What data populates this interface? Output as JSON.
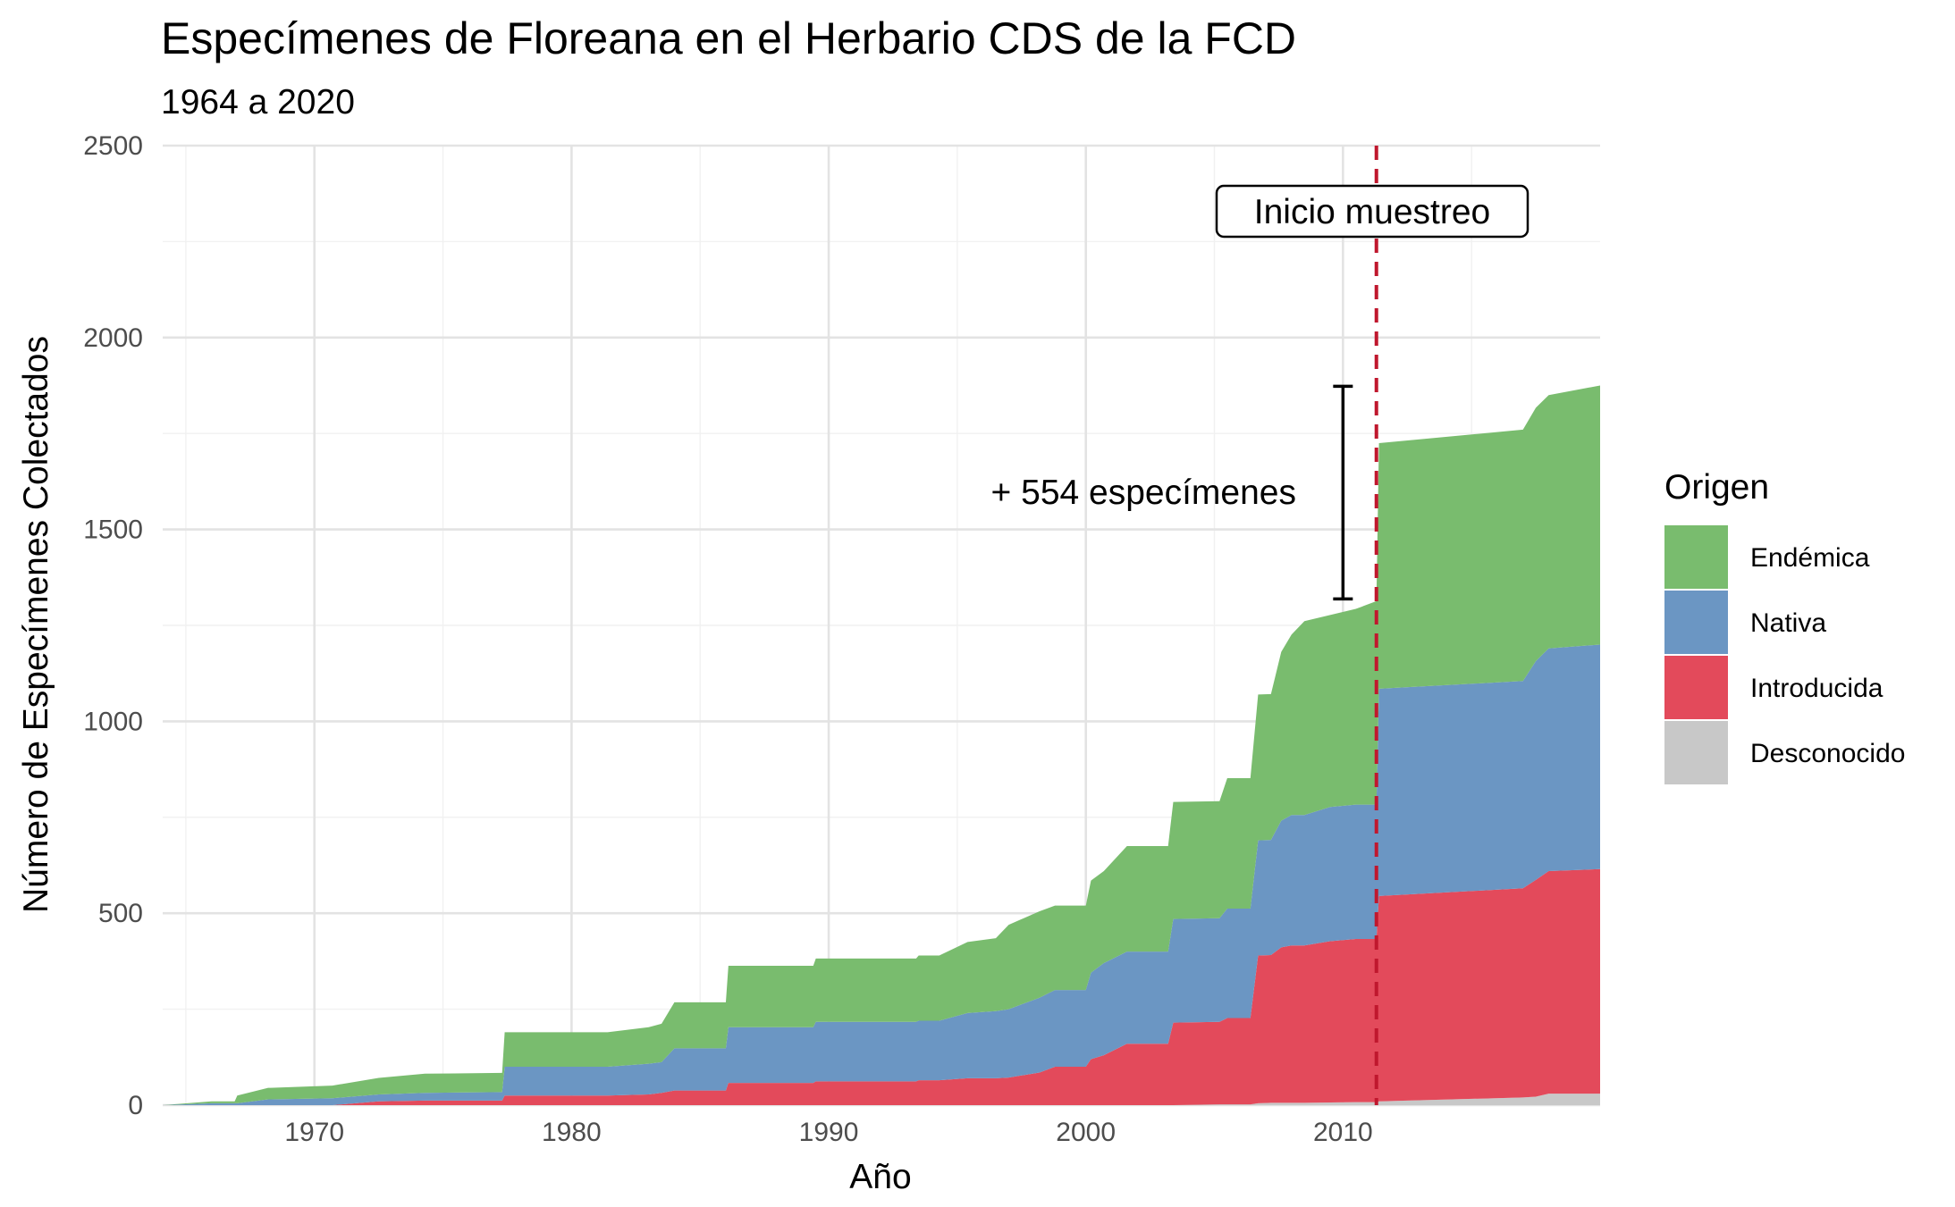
{
  "chart_data": {
    "type": "area",
    "stacked": true,
    "title": "Especímenes de Floreana en el Herbario CDS de la FCD",
    "subtitle": "1964 a 2020",
    "xlabel": "Año",
    "ylabel": "Número de Especímenes Colectados",
    "xlim": [
      1964.1,
      2020.0
    ],
    "ylim": [
      0,
      2500
    ],
    "x_ticks": [
      1970,
      1980,
      1990,
      2000,
      2010
    ],
    "y_ticks": [
      0,
      500,
      1000,
      1500,
      2000,
      2500
    ],
    "grid": true,
    "legend_title": "Origen",
    "legend_position": "right",
    "x": [
      1964.1,
      1966.0,
      1966.9,
      1967.0,
      1968.2,
      1968.3,
      1970.7,
      1972.5,
      1974.3,
      1977.3,
      1977.4,
      1981.4,
      1983.0,
      1983.5,
      1984.0,
      1986.0,
      1986.1,
      1989.4,
      1989.5,
      1993.4,
      1993.5,
      1994.3,
      1995.4,
      1996.5,
      1997.0,
      1998.2,
      1998.8,
      2000.0,
      2000.2,
      2000.7,
      2001.6,
      2003.2,
      2003.4,
      2005.2,
      2005.5,
      2006.4,
      2006.7,
      2007.2,
      2007.6,
      2008.0,
      2008.5,
      2009.5,
      2010.5,
      2011.3,
      2011.4,
      2017.0,
      2017.5,
      2018.0,
      2020.0
    ],
    "series": [
      {
        "name": "Desconocido",
        "color": "#c8c8c8",
        "values": [
          0,
          0,
          0,
          0,
          0,
          0,
          0,
          0,
          0,
          0,
          0,
          0,
          0,
          0,
          0,
          0,
          0,
          0,
          0,
          0,
          0,
          0,
          0,
          0,
          0,
          0,
          0,
          0,
          0,
          0,
          0,
          0,
          0,
          2,
          2,
          2,
          5,
          6,
          6,
          6,
          6,
          7,
          8,
          8,
          10,
          20,
          22,
          30,
          30
        ]
      },
      {
        "name": "Introducida",
        "color": "#e34a5b",
        "values": [
          0,
          0,
          0,
          0,
          0,
          0,
          0,
          10,
          12,
          12,
          25,
          25,
          28,
          32,
          38,
          38,
          58,
          58,
          62,
          62,
          65,
          65,
          70,
          70,
          72,
          85,
          100,
          100,
          120,
          130,
          160,
          160,
          215,
          215,
          225,
          225,
          385,
          385,
          405,
          410,
          410,
          420,
          425,
          425,
          535,
          545,
          565,
          580,
          585
        ]
      },
      {
        "name": "Nativa",
        "color": "#6b96c3",
        "values": [
          0,
          5,
          5,
          5,
          15,
          15,
          18,
          18,
          20,
          22,
          75,
          75,
          80,
          80,
          110,
          110,
          145,
          145,
          155,
          155,
          155,
          155,
          170,
          175,
          178,
          195,
          200,
          200,
          225,
          240,
          240,
          240,
          270,
          270,
          285,
          285,
          300,
          300,
          330,
          340,
          340,
          350,
          350,
          350,
          540,
          540,
          570,
          580,
          585
        ]
      },
      {
        "name": "Endémica",
        "color": "#79bc6e",
        "values": [
          0,
          5,
          5,
          20,
          30,
          30,
          33,
          43,
          50,
          50,
          90,
          90,
          95,
          100,
          120,
          120,
          160,
          160,
          165,
          165,
          170,
          170,
          185,
          190,
          220,
          225,
          220,
          220,
          240,
          240,
          275,
          275,
          305,
          305,
          340,
          340,
          380,
          380,
          440,
          470,
          505,
          500,
          510,
          530,
          640,
          655,
          660,
          660,
          675
        ]
      }
    ],
    "annotations": [
      {
        "type": "vline",
        "x": 2011.3,
        "color": "#c0182e",
        "style": "dashed"
      },
      {
        "type": "label",
        "text": "Inicio muestreo"
      },
      {
        "type": "errorbar",
        "x": 2010.0,
        "y_low": 1319,
        "y_high": 1873
      },
      {
        "type": "text",
        "text": "+ 554 especímenes"
      }
    ]
  }
}
